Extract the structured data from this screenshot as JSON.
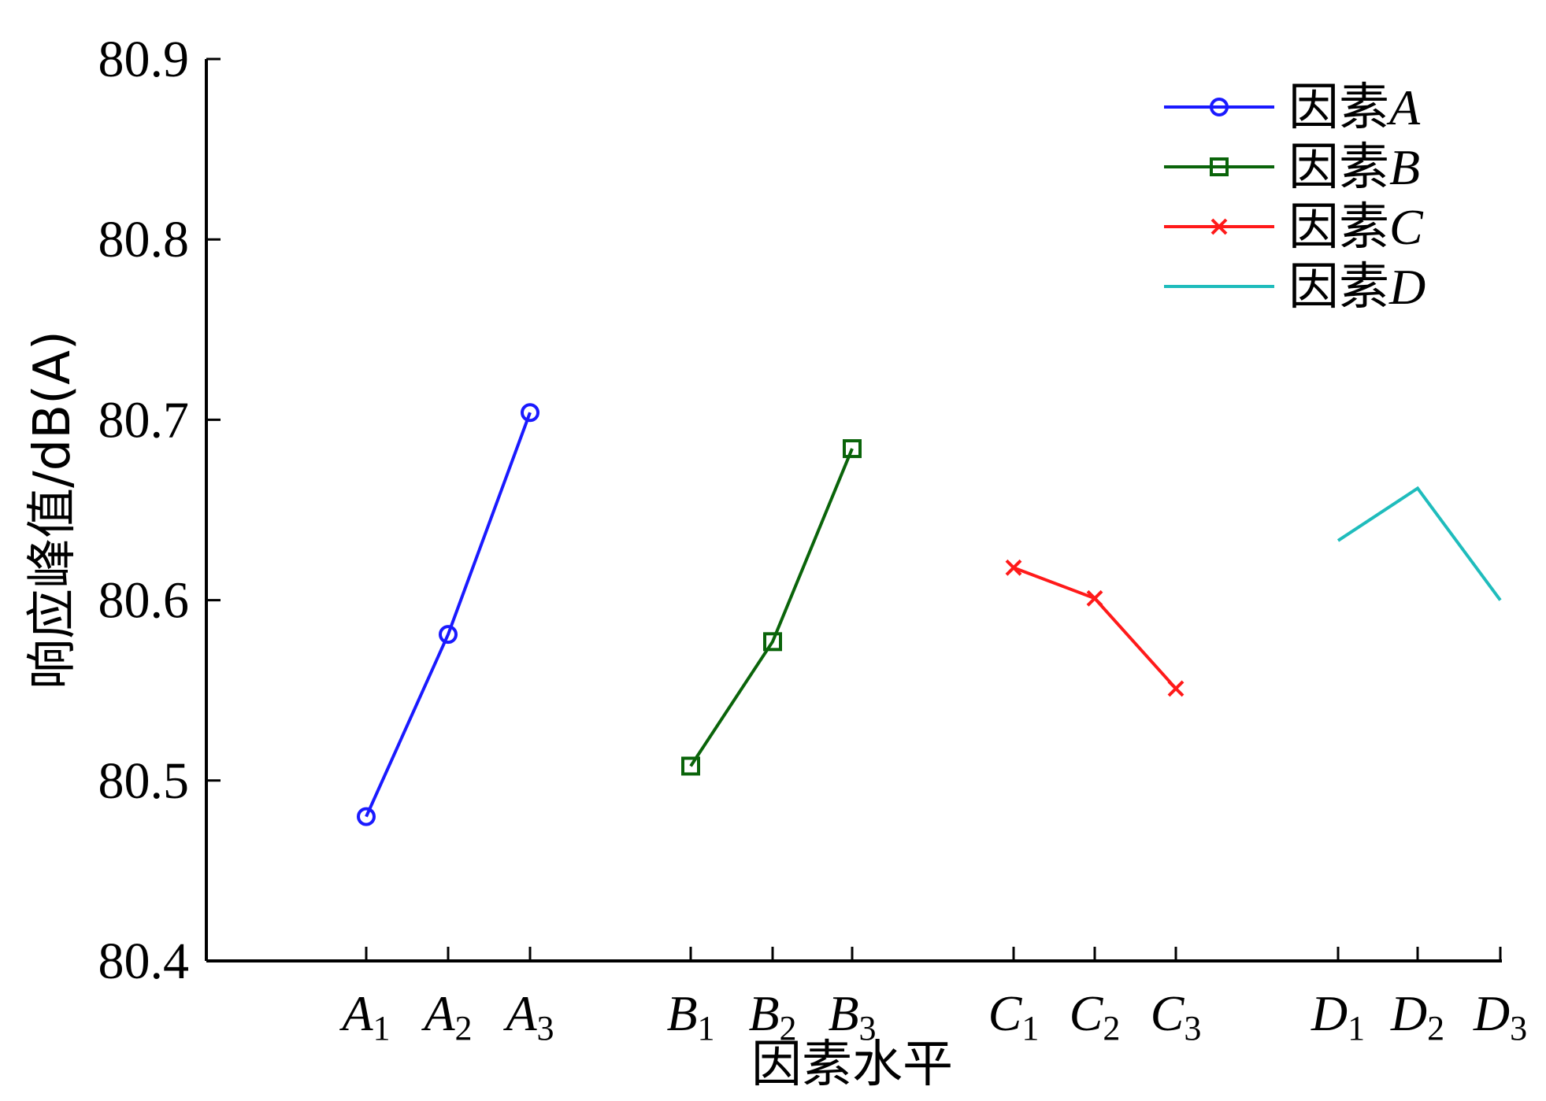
{
  "chart_data": {
    "type": "line",
    "title": "",
    "xlabel": "因素水平",
    "ylabel": "响应峰值/dB(A)",
    "ylim": [
      80.4,
      80.9
    ],
    "yticks": [
      "80.4",
      "80.5",
      "80.6",
      "80.7",
      "80.8",
      "80.9"
    ],
    "grid": false,
    "legend_position": "top-right",
    "series": [
      {
        "name": "因素A",
        "legend_prefix": "因素",
        "legend_letter": "A",
        "color": "#1a1aff",
        "marker": "circle",
        "levels": [
          {
            "letter": "A",
            "sub": "1",
            "value": 80.48
          },
          {
            "letter": "A",
            "sub": "2",
            "value": 80.581
          },
          {
            "letter": "A",
            "sub": "3",
            "value": 80.704
          }
        ]
      },
      {
        "name": "因素B",
        "legend_prefix": "因素",
        "legend_letter": "B",
        "color": "#0a640a",
        "marker": "square",
        "levels": [
          {
            "letter": "B",
            "sub": "1",
            "value": 80.508
          },
          {
            "letter": "B",
            "sub": "2",
            "value": 80.577
          },
          {
            "letter": "B",
            "sub": "3",
            "value": 80.684
          }
        ]
      },
      {
        "name": "因素C",
        "legend_prefix": "因素",
        "legend_letter": "C",
        "color": "#ff1a1a",
        "marker": "x",
        "levels": [
          {
            "letter": "C",
            "sub": "1",
            "value": 80.618
          },
          {
            "letter": "C",
            "sub": "2",
            "value": 80.601
          },
          {
            "letter": "C",
            "sub": "3",
            "value": 80.551
          }
        ]
      },
      {
        "name": "因素D",
        "legend_prefix": "因素",
        "legend_letter": "D",
        "color": "#1fbcbc",
        "marker": "none",
        "levels": [
          {
            "letter": "D",
            "sub": "1",
            "value": 80.633
          },
          {
            "letter": "D",
            "sub": "2",
            "value": 80.662
          },
          {
            "letter": "D",
            "sub": "3",
            "value": 80.6
          }
        ]
      }
    ]
  }
}
